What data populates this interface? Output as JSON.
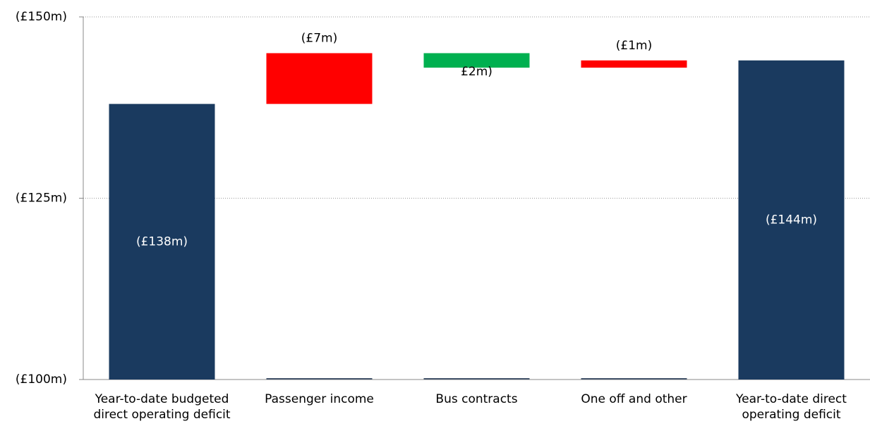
{
  "chart_data": {
    "type": "waterfall",
    "categories": [
      "Year-to-date budgeted direct operating deficit",
      "Passenger income",
      "Bus contracts",
      "One off and other",
      "Year-to-date direct operating deficit"
    ],
    "values": [
      -138,
      -7,
      2,
      -1,
      -144
    ],
    "value_labels": [
      "(£138m)",
      "(£7m)",
      "£2m)",
      "(£1m)",
      "(£144m)"
    ],
    "totals": [
      true,
      false,
      false,
      false,
      true
    ],
    "colors": [
      "#1a3a5f",
      "#ff0000",
      "#00b050",
      "#ff0000",
      "#1a3a5f"
    ],
    "ylim": [
      -100,
      -150
    ],
    "yticks": [
      {
        "value": -100,
        "label": "(£100m)"
      },
      {
        "value": -125,
        "label": "(£125m)"
      },
      {
        "value": -150,
        "label": "(£150m)"
      }
    ],
    "grid": true
  }
}
